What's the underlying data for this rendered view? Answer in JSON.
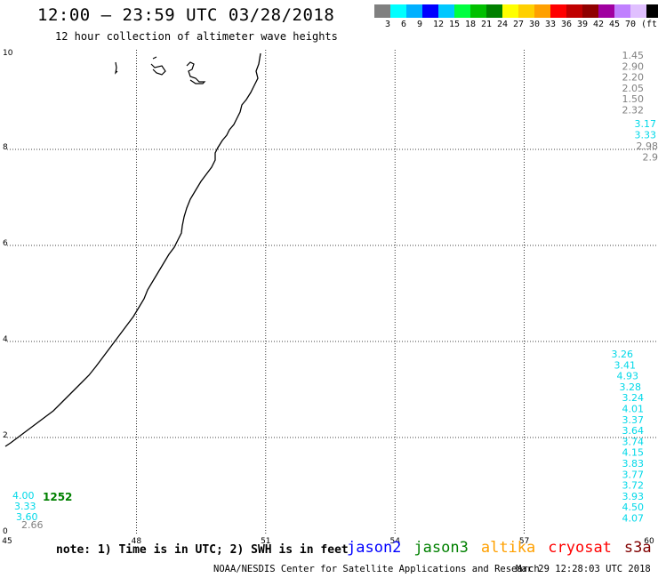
{
  "title": "12:00 – 23:59 UTC 03/28/2018",
  "subtitle": "12 hour collection of altimeter wave heights",
  "legend": {
    "colors": [
      "#808080",
      "#00ffff",
      "#00b0ff",
      "#0000ff",
      "#00c8ff",
      "#00ff40",
      "#00c000",
      "#008000",
      "#ffff00",
      "#ffd000",
      "#ffa000",
      "#ff0000",
      "#c00000",
      "#900000",
      "#a000a0",
      "#c080ff",
      "#e0c0ff",
      "#000000"
    ],
    "labels": [
      "3",
      "6",
      "9",
      "12",
      "15",
      "18",
      "21",
      "24",
      "27",
      "30",
      "33",
      "36",
      "39",
      "42",
      "45",
      "70",
      "(ft)"
    ]
  },
  "axes": {
    "x_ticks": [
      "45",
      "48",
      "51",
      "54",
      "57",
      "60"
    ],
    "y_ticks": [
      "0",
      "2",
      "4",
      "6",
      "8",
      "10"
    ]
  },
  "wave_labels_right": {
    "gray": [
      "1.45",
      "2.90",
      "2.20",
      "2.05",
      "1.50",
      "2.32"
    ],
    "cyan_top": [
      "3.17",
      "3.33"
    ],
    "gray_mid": [
      "2.98",
      "2.9"
    ],
    "cyan_bottom": [
      "3.26",
      "3.41",
      "4.93",
      "3.28",
      "3.24",
      "4.01",
      "3.37",
      "3.64",
      "3.74",
      "4.15",
      "3.83",
      "3.77",
      "3.72",
      "3.93",
      "4.50",
      "4.07"
    ]
  },
  "wave_labels_left": {
    "cyan": [
      "4.00",
      "3.33",
      "3.60"
    ],
    "gray": [
      "2.66"
    ],
    "count": "1252"
  },
  "footer_note": "note: 1) Time is in UTC; 2) SWH is in feet",
  "satellites": [
    {
      "name": "jason2",
      "color": "#0000ff"
    },
    {
      "name": "jason3",
      "color": "#008000"
    },
    {
      "name": "altika",
      "color": "#ffa000"
    },
    {
      "name": "cryosat",
      "color": "#ff0000"
    },
    {
      "name": "s3a",
      "color": "#800000"
    }
  ],
  "credit": "NOAA/NESDIS Center for Satellite Applications and Research",
  "timestamp": "Mar 29 12:28:03 UTC 2018",
  "colors": {
    "cyan": "#00d8e8",
    "gray": "#808080",
    "count": "#008000"
  }
}
